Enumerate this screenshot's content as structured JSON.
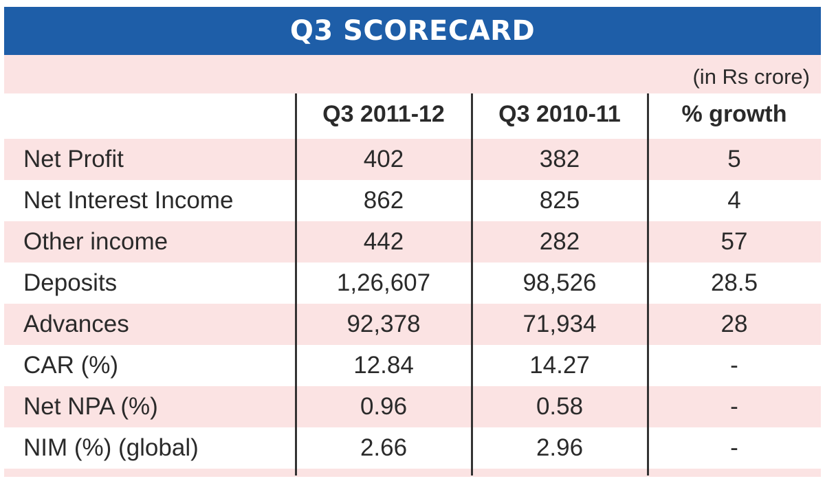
{
  "chart_data": {
    "type": "table",
    "title": "Q3 SCORECARD",
    "units": "(in Rs crore)",
    "columns": [
      "",
      "Q3 2011-12",
      "Q3 2010-11",
      "% growth"
    ],
    "rows": [
      {
        "label": "Net Profit",
        "values": [
          "402",
          "382",
          "5"
        ]
      },
      {
        "label": "Net Interest Income",
        "values": [
          "862",
          "825",
          "4"
        ]
      },
      {
        "label": "Other income",
        "values": [
          "442",
          "282",
          "57"
        ]
      },
      {
        "label": "Deposits",
        "values": [
          "1,26,607",
          "98,526",
          "28.5"
        ]
      },
      {
        "label": "Advances",
        "values": [
          "92,378",
          "71,934",
          "28"
        ]
      },
      {
        "label": "CAR (%)",
        "values": [
          "12.84",
          "14.27",
          "-"
        ]
      },
      {
        "label": "Net NPA (%)",
        "values": [
          "0.96",
          "0.58",
          "-"
        ]
      },
      {
        "label": "NIM (%) (global)",
        "values": [
          "2.66",
          "2.96",
          "-"
        ]
      }
    ]
  },
  "colors": {
    "title_bar": "#1e5ea8",
    "row_shade": "#fbe3e3",
    "divider": "#333333"
  }
}
